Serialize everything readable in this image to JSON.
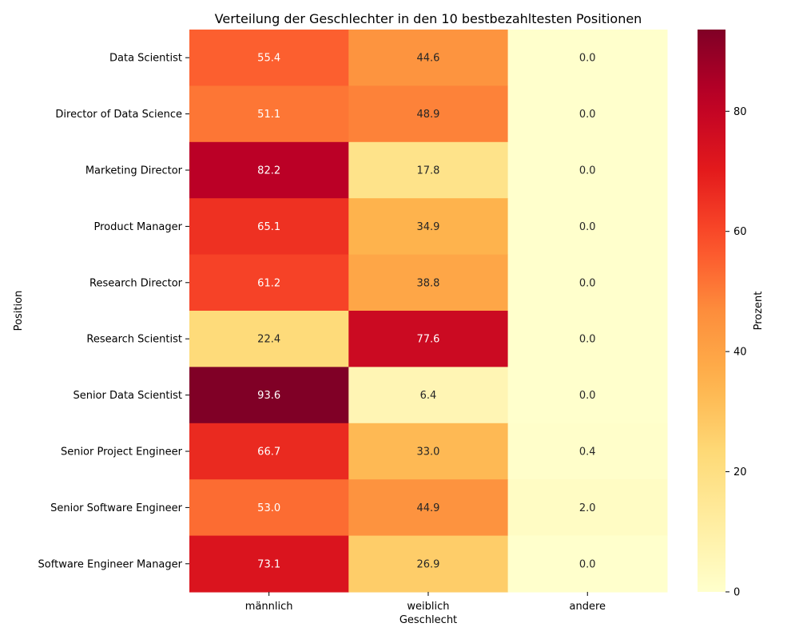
{
  "chart_data": {
    "type": "heatmap",
    "title": "Verteilung der Geschlechter in den 10 bestbezahltesten Positionen",
    "xlabel": "Geschlecht",
    "ylabel": "Position",
    "x_categories": [
      "männlich",
      "weiblich",
      "andere"
    ],
    "y_categories": [
      "Data Scientist",
      "Director of Data Science",
      "Marketing Director",
      "Product Manager",
      "Research Director",
      "Research Scientist",
      "Senior Data Scientist",
      "Senior Project Engineer",
      "Senior Software Engineer",
      "Software Engineer Manager"
    ],
    "values": [
      [
        55.4,
        44.6,
        0.0
      ],
      [
        51.1,
        48.9,
        0.0
      ],
      [
        82.2,
        17.8,
        0.0
      ],
      [
        65.1,
        34.9,
        0.0
      ],
      [
        61.2,
        38.8,
        0.0
      ],
      [
        22.4,
        77.6,
        0.0
      ],
      [
        93.6,
        6.4,
        0.0
      ],
      [
        66.7,
        33.0,
        0.4
      ],
      [
        53.0,
        44.9,
        2.0
      ],
      [
        73.1,
        26.9,
        0.0
      ]
    ],
    "colorbar": {
      "label": "Prozent",
      "range": [
        0,
        93.6
      ],
      "ticks": [
        0,
        20,
        40,
        60,
        80
      ],
      "colormap": "YlOrRd"
    }
  }
}
